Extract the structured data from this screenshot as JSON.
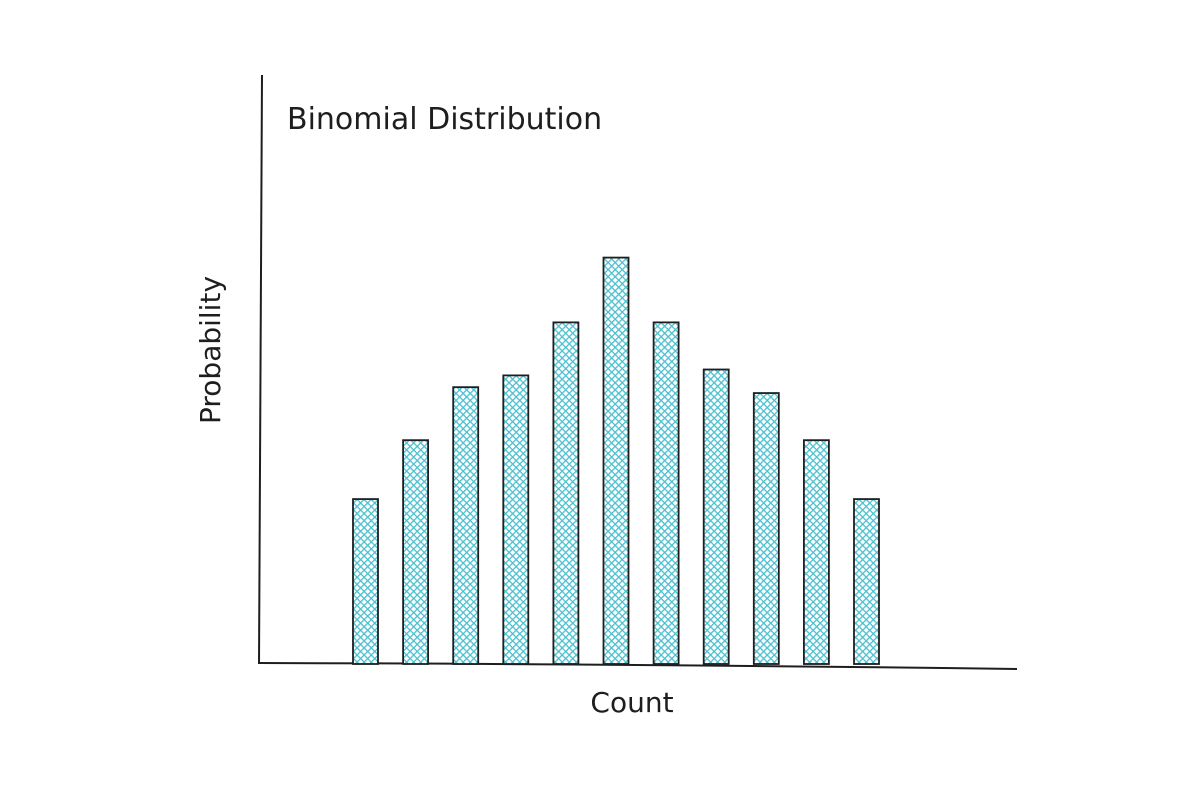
{
  "chart_data": {
    "type": "bar",
    "title": "Binomial Distribution",
    "xlabel": "Count",
    "ylabel": "Probability",
    "categories": [
      "",
      "",
      "",
      "",
      "",
      "",
      "",
      "",
      "",
      "",
      ""
    ],
    "values": [
      0.28,
      0.38,
      0.47,
      0.49,
      0.58,
      0.69,
      0.58,
      0.5,
      0.46,
      0.38,
      0.28
    ],
    "ylim": [
      0,
      1
    ],
    "grid": false,
    "tick_labels": false,
    "style": "hand-drawn, cross-hatched fill",
    "colors": {
      "bar_fill": "#4bbfcf",
      "bar_stroke": "#1e1e1e",
      "axis": "#1e1e1e"
    }
  }
}
